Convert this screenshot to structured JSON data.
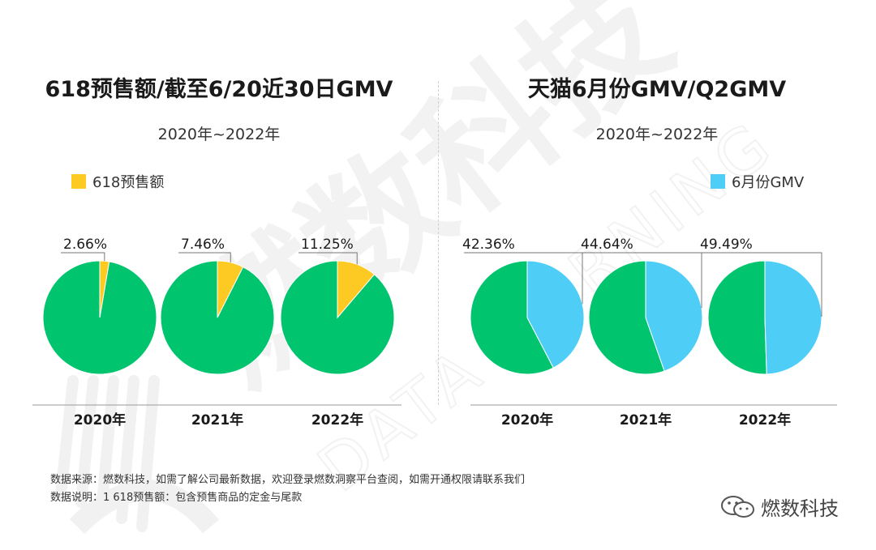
{
  "left_panel": {
    "title": "618预售额/截至6/20近30日GMV",
    "subtitle": "2020年~2022年",
    "legend_label": "618预售额"
  },
  "right_panel": {
    "title": "天猫6月份GMV/Q2GMV",
    "subtitle": "2020年~2022年",
    "legend_label": "6月份GMV"
  },
  "colors": {
    "remainder": "#00C46E",
    "left_accent": "#FDC923",
    "right_accent": "#4ECDF7",
    "axis_line": "#999999",
    "label_line": "#777777",
    "watermark": "#f1f1f1"
  },
  "chart_data": [
    {
      "type": "pie",
      "title": "618预售额/截至6/20近30日GMV",
      "subtitle": "2020年~2022年",
      "legend": [
        "618预售额"
      ],
      "categories": [
        "2020年",
        "2021年",
        "2022年"
      ],
      "series": [
        {
          "name": "618预售额",
          "values": [
            2.66,
            7.46,
            11.25
          ]
        }
      ],
      "value_labels": [
        "2.66%",
        "7.46%",
        "11.25%"
      ]
    },
    {
      "type": "pie",
      "title": "天猫6月份GMV/Q2GMV",
      "subtitle": "2020年~2022年",
      "legend": [
        "6月份GMV"
      ],
      "categories": [
        "2020年",
        "2021年",
        "2022年"
      ],
      "series": [
        {
          "name": "6月份GMV",
          "values": [
            42.36,
            44.64,
            49.49
          ]
        }
      ],
      "value_labels": [
        "42.36%",
        "44.64%",
        "49.49%"
      ]
    }
  ],
  "notes": {
    "source": "数据来源：燃数科技，如需了解公司最新数据，欢迎登录燃数洞察平台查阅，如需开通权限请联系我们",
    "explanation": "数据说明：1 618预售额：包含预售商品的定金与尾款"
  },
  "watermark": {
    "brand": "燃数科技",
    "english": "DATA BURNING"
  },
  "logo": {
    "text": "燃数科技",
    "icon": "wechat-icon"
  }
}
